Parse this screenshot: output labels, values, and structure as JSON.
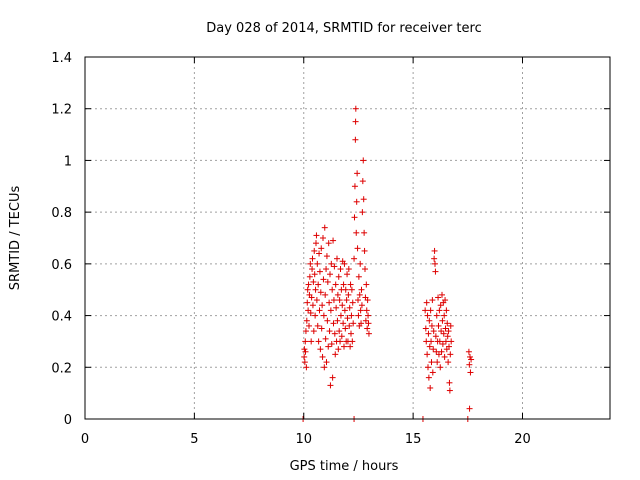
{
  "chart_data": {
    "type": "scatter",
    "title": "Day 028 of 2014, SRMTID for receiver terc",
    "xlabel": "GPS time / hours",
    "ylabel": "SRMTID / TECUs",
    "xlim": [
      0,
      24
    ],
    "ylim": [
      0,
      1.4
    ],
    "x_ticks": [
      0,
      5,
      10,
      15,
      20
    ],
    "x_tick_labels": [
      "0",
      "5",
      "10",
      "15",
      "20"
    ],
    "y_ticks": [
      0,
      0.2,
      0.4,
      0.6,
      0.8,
      1.0,
      1.2,
      1.4
    ],
    "y_tick_labels": [
      "0",
      "0.2",
      "0.4",
      "0.6",
      "0.8",
      "1",
      "1.2",
      "1.4"
    ],
    "grid": true,
    "marker": "+",
    "colors": {
      "points": "#dd0000",
      "grid": "#a0a0a0",
      "axis": "#000000"
    },
    "series": [
      {
        "name": "SRMTID",
        "points": [
          [
            9.97,
            0.0
          ],
          [
            12.3,
            0.0
          ],
          [
            15.45,
            0.0
          ],
          [
            17.5,
            0.0
          ],
          [
            10.02,
            0.24
          ],
          [
            10.03,
            0.27
          ],
          [
            10.05,
            0.22
          ],
          [
            10.07,
            0.3
          ],
          [
            10.08,
            0.26
          ],
          [
            10.1,
            0.34
          ],
          [
            10.12,
            0.2
          ],
          [
            10.14,
            0.38
          ],
          [
            10.16,
            0.45
          ],
          [
            10.18,
            0.5
          ],
          [
            10.2,
            0.42
          ],
          [
            10.22,
            0.52
          ],
          [
            10.24,
            0.36
          ],
          [
            10.26,
            0.48
          ],
          [
            10.28,
            0.55
          ],
          [
            10.3,
            0.6
          ],
          [
            10.32,
            0.41
          ],
          [
            10.34,
            0.3
          ],
          [
            10.36,
            0.47
          ],
          [
            10.38,
            0.58
          ],
          [
            10.4,
            0.62
          ],
          [
            10.42,
            0.44
          ],
          [
            10.44,
            0.53
          ],
          [
            10.46,
            0.34
          ],
          [
            10.48,
            0.65
          ],
          [
            10.5,
            0.56
          ],
          [
            10.52,
            0.4
          ],
          [
            10.54,
            0.5
          ],
          [
            10.56,
            0.68
          ],
          [
            10.58,
            0.71
          ],
          [
            10.6,
            0.46
          ],
          [
            10.62,
            0.6
          ],
          [
            10.64,
            0.36
          ],
          [
            10.66,
            0.52
          ],
          [
            10.68,
            0.3
          ],
          [
            10.7,
            0.64
          ],
          [
            10.72,
            0.42
          ],
          [
            10.74,
            0.57
          ],
          [
            10.76,
            0.27
          ],
          [
            10.78,
            0.49
          ],
          [
            10.8,
            0.66
          ],
          [
            10.82,
            0.35
          ],
          [
            10.84,
            0.44
          ],
          [
            10.86,
            0.24
          ],
          [
            10.88,
            0.7
          ],
          [
            10.9,
            0.54
          ],
          [
            10.92,
            0.4
          ],
          [
            10.94,
            0.2
          ],
          [
            10.96,
            0.74
          ],
          [
            10.98,
            0.48
          ],
          [
            11.0,
            0.31
          ],
          [
            11.02,
            0.58
          ],
          [
            11.04,
            0.22
          ],
          [
            11.06,
            0.63
          ],
          [
            11.08,
            0.38
          ],
          [
            11.1,
            0.53
          ],
          [
            11.12,
            0.28
          ],
          [
            11.14,
            0.68
          ],
          [
            11.16,
            0.45
          ],
          [
            11.18,
            0.34
          ],
          [
            11.2,
            0.56
          ],
          [
            11.22,
            0.13
          ],
          [
            11.24,
            0.42
          ],
          [
            11.26,
            0.6
          ],
          [
            11.28,
            0.29
          ],
          [
            11.3,
            0.5
          ],
          [
            11.32,
            0.16
          ],
          [
            11.34,
            0.69
          ],
          [
            11.36,
            0.37
          ],
          [
            11.38,
            0.46
          ],
          [
            11.4,
            0.59
          ],
          [
            11.42,
            0.33
          ],
          [
            11.44,
            0.25
          ],
          [
            11.46,
            0.52
          ],
          [
            11.48,
            0.43
          ],
          [
            11.5,
            0.3
          ],
          [
            11.52,
            0.62
          ],
          [
            11.54,
            0.38
          ],
          [
            11.56,
            0.48
          ],
          [
            11.58,
            0.27
          ],
          [
            11.6,
            0.55
          ],
          [
            11.62,
            0.34
          ],
          [
            11.64,
            0.46
          ],
          [
            11.66,
            0.3
          ],
          [
            11.68,
            0.58
          ],
          [
            11.7,
            0.4
          ],
          [
            11.72,
            0.5
          ],
          [
            11.74,
            0.32
          ],
          [
            11.76,
            0.44
          ],
          [
            11.78,
            0.61
          ],
          [
            11.8,
            0.37
          ],
          [
            11.82,
            0.52
          ],
          [
            11.84,
            0.28
          ],
          [
            11.86,
            0.6
          ],
          [
            11.88,
            0.42
          ],
          [
            11.9,
            0.35
          ],
          [
            11.92,
            0.5
          ],
          [
            11.94,
            0.3
          ],
          [
            11.96,
            0.46
          ],
          [
            11.98,
            0.56
          ],
          [
            12.0,
            0.39
          ],
          [
            12.02,
            0.3
          ],
          [
            12.04,
            0.48
          ],
          [
            12.06,
            0.58
          ],
          [
            12.08,
            0.36
          ],
          [
            12.1,
            0.43
          ],
          [
            12.12,
            0.28
          ],
          [
            12.14,
            0.52
          ],
          [
            12.16,
            0.33
          ],
          [
            12.18,
            0.4
          ],
          [
            12.2,
            0.5
          ],
          [
            12.22,
            0.3
          ],
          [
            12.24,
            0.45
          ],
          [
            12.26,
            0.37
          ],
          [
            12.3,
            0.62
          ],
          [
            12.32,
            0.78
          ],
          [
            12.34,
            0.9
          ],
          [
            12.36,
            1.08
          ],
          [
            12.37,
            1.15
          ],
          [
            12.38,
            1.2
          ],
          [
            12.4,
            0.72
          ],
          [
            12.42,
            0.84
          ],
          [
            12.44,
            0.95
          ],
          [
            12.46,
            0.66
          ],
          [
            12.48,
            0.46
          ],
          [
            12.5,
            0.4
          ],
          [
            12.52,
            0.55
          ],
          [
            12.54,
            0.36
          ],
          [
            12.56,
            0.48
          ],
          [
            12.58,
            0.6
          ],
          [
            12.6,
            0.42
          ],
          [
            12.62,
            0.37
          ],
          [
            12.64,
            0.5
          ],
          [
            12.66,
            0.44
          ],
          [
            12.68,
            0.8
          ],
          [
            12.7,
            0.92
          ],
          [
            12.72,
            1.0
          ],
          [
            12.74,
            0.85
          ],
          [
            12.76,
            0.72
          ],
          [
            12.78,
            0.65
          ],
          [
            12.8,
            0.58
          ],
          [
            12.82,
            0.47
          ],
          [
            12.84,
            0.38
          ],
          [
            12.86,
            0.52
          ],
          [
            12.88,
            0.42
          ],
          [
            12.9,
            0.35
          ],
          [
            12.92,
            0.46
          ],
          [
            12.94,
            0.4
          ],
          [
            12.96,
            0.37
          ],
          [
            12.98,
            0.33
          ],
          [
            15.55,
            0.42
          ],
          [
            15.58,
            0.35
          ],
          [
            15.6,
            0.3
          ],
          [
            15.62,
            0.45
          ],
          [
            15.64,
            0.25
          ],
          [
            15.66,
            0.4
          ],
          [
            15.68,
            0.2
          ],
          [
            15.7,
            0.33
          ],
          [
            15.72,
            0.16
          ],
          [
            15.74,
            0.38
          ],
          [
            15.76,
            0.28
          ],
          [
            15.78,
            0.12
          ],
          [
            15.8,
            0.42
          ],
          [
            15.82,
            0.3
          ],
          [
            15.84,
            0.22
          ],
          [
            15.86,
            0.36
          ],
          [
            15.88,
            0.46
          ],
          [
            15.9,
            0.18
          ],
          [
            15.92,
            0.27
          ],
          [
            15.94,
            0.34
          ],
          [
            15.96,
            0.62
          ],
          [
            15.98,
            0.65
          ],
          [
            16.0,
            0.6
          ],
          [
            16.02,
            0.57
          ],
          [
            16.04,
            0.32
          ],
          [
            16.06,
            0.26
          ],
          [
            16.08,
            0.4
          ],
          [
            16.1,
            0.22
          ],
          [
            16.12,
            0.3
          ],
          [
            16.14,
            0.47
          ],
          [
            16.16,
            0.36
          ],
          [
            16.18,
            0.25
          ],
          [
            16.2,
            0.42
          ],
          [
            16.22,
            0.3
          ],
          [
            16.24,
            0.2
          ],
          [
            16.26,
            0.44
          ],
          [
            16.28,
            0.34
          ],
          [
            16.3,
            0.26
          ],
          [
            16.32,
            0.48
          ],
          [
            16.34,
            0.38
          ],
          [
            16.36,
            0.29
          ],
          [
            16.38,
            0.45
          ],
          [
            16.4,
            0.33
          ],
          [
            16.42,
            0.4
          ],
          [
            16.44,
            0.24
          ],
          [
            16.46,
            0.46
          ],
          [
            16.48,
            0.35
          ],
          [
            16.5,
            0.3
          ],
          [
            16.52,
            0.42
          ],
          [
            16.54,
            0.27
          ],
          [
            16.56,
            0.37
          ],
          [
            16.58,
            0.32
          ],
          [
            16.6,
            0.22
          ],
          [
            16.62,
            0.34
          ],
          [
            16.64,
            0.28
          ],
          [
            16.66,
            0.14
          ],
          [
            16.68,
            0.11
          ],
          [
            16.7,
            0.25
          ],
          [
            16.72,
            0.36
          ],
          [
            16.74,
            0.3
          ],
          [
            17.55,
            0.26
          ],
          [
            17.57,
            0.21
          ],
          [
            17.6,
            0.24
          ],
          [
            17.62,
            0.18
          ],
          [
            17.65,
            0.23
          ],
          [
            17.58,
            0.04
          ]
        ]
      }
    ]
  }
}
